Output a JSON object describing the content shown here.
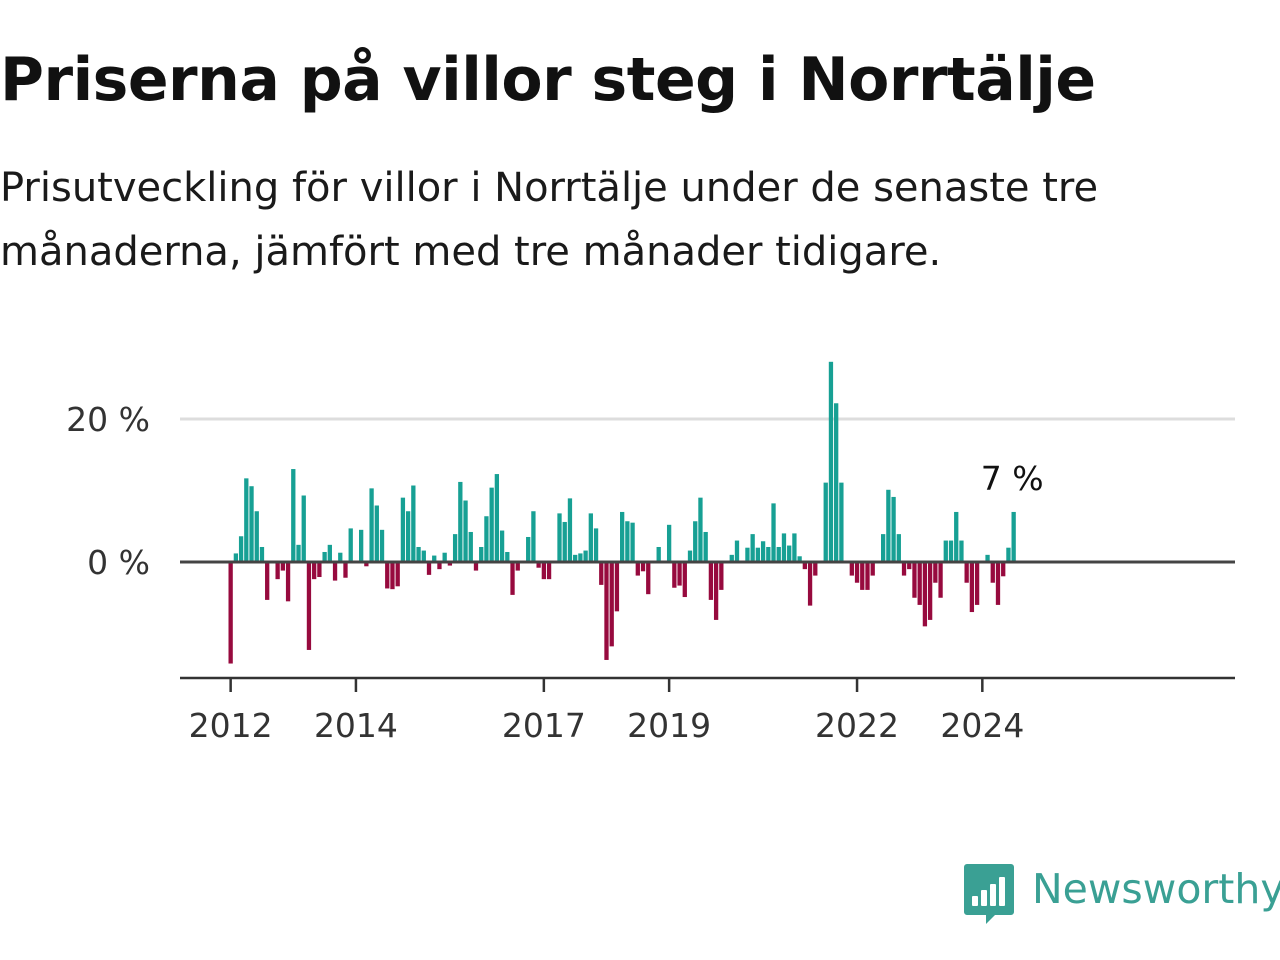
{
  "header": {
    "title": "Priserna på villor steg i Norrtälje",
    "subtitle": "Prisutveckling för villor i Norrtälje under de senaste tre månaderna, jämfört med tre månader tidigare."
  },
  "brand": {
    "name": "Newsworthy",
    "icon": "bar-chart-speech-bubble-icon"
  },
  "colors": {
    "positive": "#17a094",
    "negative": "#970a3e",
    "baseline": "#444444",
    "grid": "#dddddd",
    "brand": "#3aa094"
  },
  "chart_data": {
    "type": "bar",
    "title": "Priserna på villor steg i Norrtälje",
    "subtitle": "Prisutveckling för villor i Norrtälje under de senaste tre månaderna, jämfört med tre månader tidigare.",
    "xlabel": "",
    "ylabel": "",
    "ylim": [
      -16,
      28
    ],
    "y_ticks": [
      0,
      20
    ],
    "y_tick_labels": [
      "0 %",
      "20 %"
    ],
    "x_ticks": [
      {
        "year": 2012,
        "label": "2012"
      },
      {
        "year": 2014,
        "label": "2014"
      },
      {
        "year": 2017,
        "label": "2017"
      },
      {
        "year": 2019,
        "label": "2019"
      },
      {
        "year": 2022,
        "label": "2022"
      },
      {
        "year": 2024,
        "label": "2024"
      }
    ],
    "start": "2012-01",
    "grid": true,
    "last_value_label": "7 %",
    "values": [
      -14.2,
      1.2,
      3.6,
      11.7,
      10.6,
      7.1,
      2.1,
      -5.3,
      0,
      -2.4,
      -1.2,
      -5.5,
      13.0,
      2.4,
      9.3,
      -12.3,
      -2.4,
      -2.1,
      1.4,
      2.4,
      -2.6,
      1.3,
      -2.2,
      4.7,
      0,
      4.5,
      -0.6,
      10.3,
      7.9,
      4.5,
      -3.7,
      -3.8,
      -3.4,
      9.0,
      7.1,
      10.7,
      2.1,
      1.6,
      -1.8,
      0.9,
      -1.0,
      1.3,
      -0.5,
      3.9,
      11.2,
      8.6,
      4.2,
      -1.2,
      2.1,
      6.4,
      10.4,
      12.3,
      4.4,
      1.4,
      -4.6,
      -1.2,
      0,
      3.5,
      7.1,
      -0.8,
      -2.4,
      -2.4,
      0.2,
      6.8,
      5.6,
      8.9,
      1.0,
      1.2,
      1.6,
      6.8,
      4.7,
      -3.2,
      -13.7,
      -11.8,
      -6.9,
      7.0,
      5.7,
      5.5,
      -1.9,
      -1.3,
      -4.5,
      0,
      2.1,
      0,
      5.2,
      -3.6,
      -3.3,
      -4.9,
      1.6,
      5.7,
      9.0,
      4.2,
      -5.3,
      -8.1,
      -3.9,
      0,
      1.0,
      3.0,
      0,
      2.0,
      3.9,
      2.0,
      2.9,
      2.1,
      8.2,
      2.1,
      4.0,
      2.3,
      4.0,
      0.8,
      -1.0,
      -6.1,
      -1.9,
      0,
      11.1,
      28.0,
      22.2,
      11.1,
      0,
      -1.9,
      -2.9,
      -3.9,
      -3.9,
      -1.9,
      0,
      3.9,
      10.1,
      9.1,
      3.9,
      -1.9,
      -1.0,
      -5.0,
      -6.0,
      -9.0,
      -8.1,
      -2.9,
      -5.0,
      3.0,
      3.0,
      7.0,
      3.0,
      -2.9,
      -7.0,
      -6.0,
      0,
      1.0,
      -2.9,
      -6.0,
      -2.0,
      2.0,
      7.0
    ]
  }
}
